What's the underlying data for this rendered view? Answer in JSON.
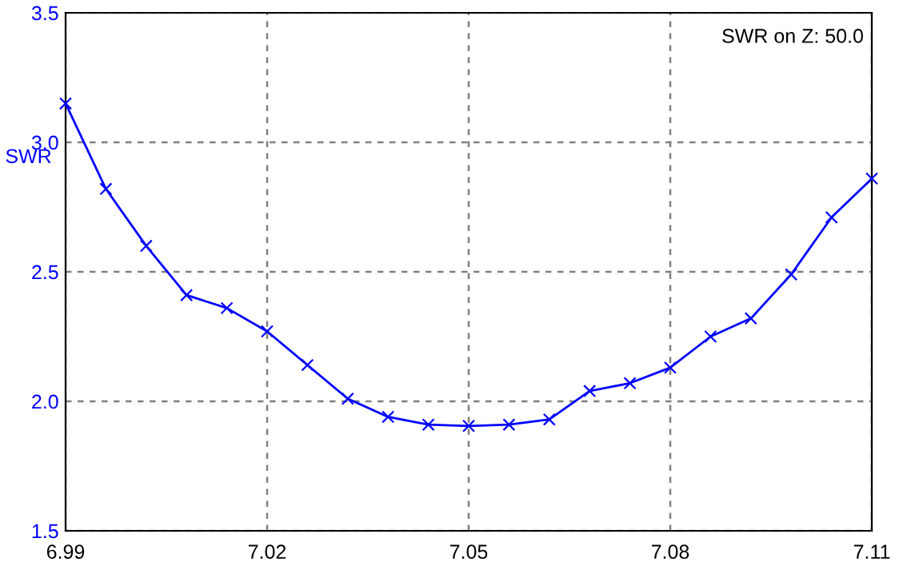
{
  "chart_data": {
    "type": "line",
    "ylabel": "SWR",
    "annotations": [
      "SWR on Z: 50.0"
    ],
    "x": [
      6.99,
      6.996,
      7.002,
      7.008,
      7.014,
      7.02,
      7.026,
      7.032,
      7.038,
      7.044,
      7.05,
      7.056,
      7.062,
      7.068,
      7.074,
      7.08,
      7.086,
      7.092,
      7.098,
      7.104,
      7.11
    ],
    "series": [
      {
        "color": "#0000ff",
        "values": [
          3.15,
          2.82,
          2.6,
          2.41,
          2.36,
          2.27,
          2.14,
          2.01,
          1.94,
          1.91,
          1.905,
          1.91,
          1.93,
          2.04,
          2.07,
          2.13,
          2.25,
          2.32,
          2.49,
          2.71,
          2.86
        ]
      }
    ],
    "xlim": [
      6.99,
      7.11
    ],
    "xticks": [
      6.99,
      7.02,
      7.05,
      7.08,
      7.11
    ],
    "ylim": [
      1.5,
      3.5
    ],
    "yticks": [
      {
        "value": 1.5,
        "label": "1.5"
      },
      {
        "value": 2.0,
        "label": "2.0"
      },
      {
        "value": 2.5,
        "label": "2.5"
      },
      {
        "value": 3.0,
        "label": "3.0"
      },
      {
        "value": 3.5,
        "label": "3.5"
      }
    ],
    "grid": true,
    "marker": "cross",
    "line_style": "solid"
  }
}
